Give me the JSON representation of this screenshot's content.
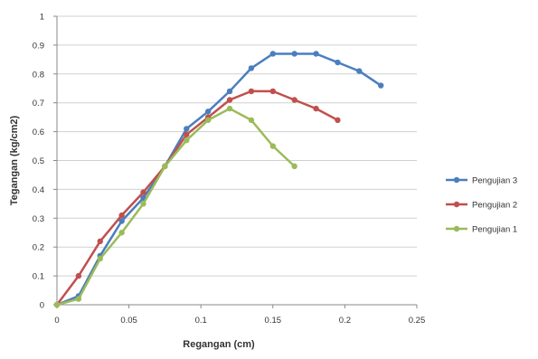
{
  "chart_data": {
    "type": "line",
    "title": "",
    "xlabel": "Regangan (cm)",
    "ylabel": "Tegangan (kg/cm2)",
    "xlim": [
      0,
      0.25
    ],
    "ylim": [
      0,
      1
    ],
    "x_ticks": [
      "0",
      "0.05",
      "0.1",
      "0.15",
      "0.2",
      "0.25"
    ],
    "y_ticks": [
      "0",
      "0.1",
      "0.2",
      "0.3",
      "0.4",
      "0.5",
      "0.6",
      "0.7",
      "0.8",
      "0.9",
      "1"
    ],
    "grid": true,
    "legend_position": "right",
    "series": [
      {
        "name": "Pengujian 3",
        "color": "#4a7ebf",
        "x": [
          0,
          0.015,
          0.03,
          0.045,
          0.06,
          0.075,
          0.09,
          0.105,
          0.12,
          0.135,
          0.15,
          0.165,
          0.18,
          0.195,
          0.21,
          0.225
        ],
        "y": [
          0,
          0.03,
          0.17,
          0.29,
          0.37,
          0.48,
          0.61,
          0.67,
          0.74,
          0.82,
          0.87,
          0.87,
          0.87,
          0.84,
          0.81,
          0.76
        ]
      },
      {
        "name": "Pengujian 2",
        "color": "#c0504d",
        "x": [
          0,
          0.015,
          0.03,
          0.045,
          0.06,
          0.075,
          0.09,
          0.105,
          0.12,
          0.135,
          0.15,
          0.165,
          0.18,
          0.195
        ],
        "y": [
          0,
          0.1,
          0.22,
          0.31,
          0.39,
          0.48,
          0.59,
          0.65,
          0.71,
          0.74,
          0.74,
          0.71,
          0.68,
          0.64
        ]
      },
      {
        "name": "Pengujian 1",
        "color": "#9bbb59",
        "x": [
          0,
          0.015,
          0.03,
          0.045,
          0.06,
          0.075,
          0.09,
          0.105,
          0.12,
          0.135,
          0.15,
          0.165
        ],
        "y": [
          0,
          0.02,
          0.16,
          0.25,
          0.35,
          0.48,
          0.57,
          0.64,
          0.68,
          0.64,
          0.55,
          0.48
        ]
      }
    ]
  }
}
